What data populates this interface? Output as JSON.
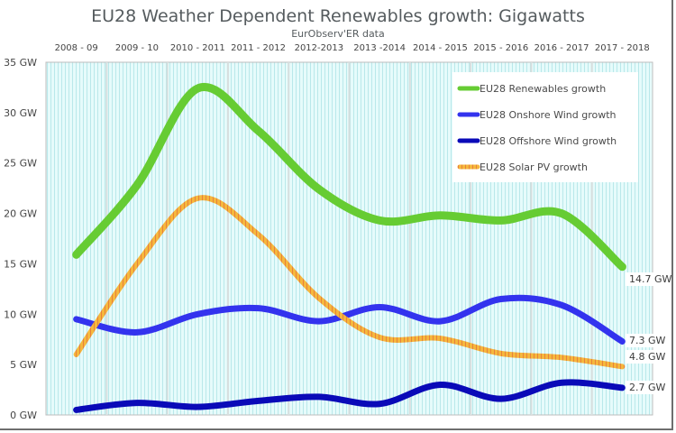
{
  "chart_data": {
    "type": "line",
    "title": "EU28 Weather Dependent Renewables growth:  Gigawatts",
    "subtitle": "EurObserv'ER  data",
    "xlabel": "",
    "ylabel": "",
    "categories": [
      "2008 - 09",
      "2009 - 10",
      "2010 - 2011",
      "2011 - 2012",
      "2012-2013",
      "2013 -2014",
      "2014 - 2015",
      "2015 - 2016",
      "2016 - 2017",
      "2017 - 2018"
    ],
    "x_axis_position": "top",
    "ylim": [
      0,
      35
    ],
    "yticks": [
      0,
      5,
      10,
      15,
      20,
      25,
      30,
      35
    ],
    "ytick_labels": [
      "0 GW",
      "5 GW",
      "10 GW",
      "15 GW",
      "20 GW",
      "25 GW",
      "30 GW",
      "35 GW"
    ],
    "smoothed": true,
    "grid": false,
    "legend_position": "top-right",
    "series": [
      {
        "name": "EU28 Renewables growth",
        "color": "#66cc33",
        "values": [
          15.9,
          22.8,
          32.4,
          28.2,
          22.4,
          19.3,
          19.8,
          19.3,
          20.0,
          14.7
        ],
        "end_label": "14.7 GW"
      },
      {
        "name": "EU28 Onshore Wind  growth",
        "color": "#3333ee",
        "values": [
          9.5,
          8.2,
          10.0,
          10.6,
          9.3,
          10.7,
          9.3,
          11.5,
          10.9,
          7.3
        ],
        "end_label": "7.3 GW"
      },
      {
        "name": "EU28 Offshore Wind  growth",
        "color": "#0a0ab8",
        "values": [
          0.5,
          1.2,
          0.8,
          1.4,
          1.8,
          1.1,
          3.0,
          1.6,
          3.2,
          2.7
        ],
        "end_label": "2.7 GW"
      },
      {
        "name": "EU28 Solar PV  growth",
        "color": "#f5b83d",
        "values": [
          6.0,
          15.0,
          21.5,
          17.9,
          11.6,
          7.7,
          7.6,
          6.1,
          5.7,
          4.8
        ],
        "end_label": "4.8 GW"
      }
    ]
  }
}
